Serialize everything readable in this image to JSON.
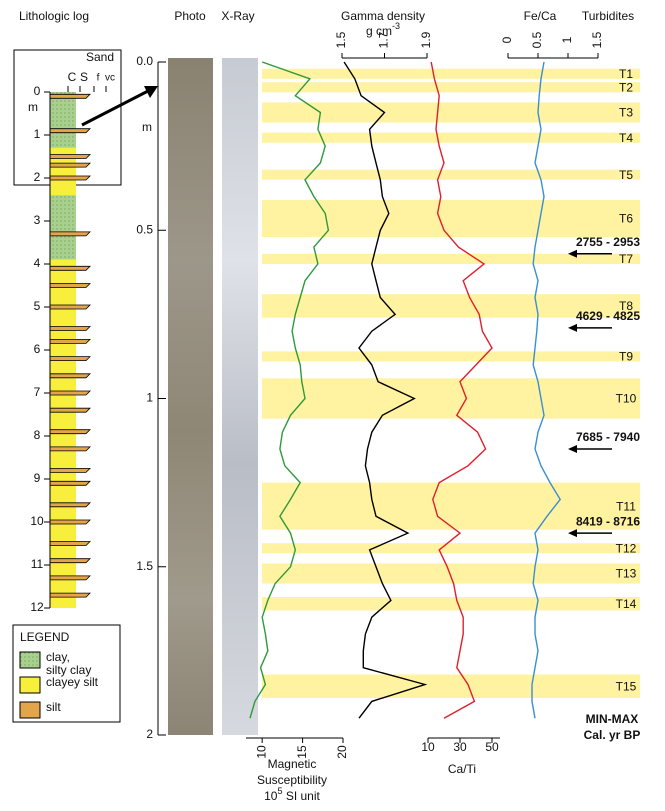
{
  "chart_data": [
    {
      "type": "log",
      "title": "Lithologic log",
      "ylim": [
        0,
        12
      ],
      "yticks": [
        0,
        1,
        2,
        3,
        4,
        5,
        6,
        7,
        8,
        9,
        10,
        11,
        12
      ],
      "ylabel": "m",
      "grain_title": "Sand",
      "grain_labels": [
        "C",
        "S",
        "f",
        "vc"
      ],
      "layers": [
        {
          "top": 0,
          "bottom": 1.3,
          "kind": 0
        },
        {
          "top": 1.3,
          "bottom": 2.4,
          "kind": 1
        },
        {
          "top": 2.4,
          "bottom": 3.9,
          "kind": 0
        },
        {
          "top": 3.9,
          "bottom": 12,
          "kind": 1
        }
      ],
      "silt_beds": [
        0.1,
        0.9,
        1.5,
        1.7,
        2.0,
        3.3,
        4.1,
        4.5,
        5.0,
        5.5,
        5.8,
        6.2,
        6.6,
        7.0,
        7.4,
        7.9,
        8.3,
        8.8,
        9.1,
        9.6,
        10.0,
        10.5,
        10.9,
        11.3,
        11.7
      ],
      "legend": {
        "title": "LEGEND",
        "items": [
          {
            "name": [
              "clay,",
              "silty clay"
            ],
            "color": "#a9d18e"
          },
          {
            "name": [
              "clayey silt"
            ],
            "color": "#f7ef3c"
          },
          {
            "name": [
              "silt"
            ],
            "color": "#e2a54a"
          }
        ]
      }
    },
    {
      "type": "profile",
      "column_titles": [
        "Photo",
        "X-Ray"
      ],
      "ylim": [
        0,
        2
      ],
      "yticks": [
        {
          "value": 0,
          "label": "0.0"
        },
        0.5,
        1,
        1.5,
        2
      ],
      "ylabel": "m",
      "depth": [
        0,
        0.05,
        0.1,
        0.15,
        0.2,
        0.25,
        0.3,
        0.35,
        0.4,
        0.45,
        0.5,
        0.55,
        0.6,
        0.65,
        0.7,
        0.75,
        0.8,
        0.85,
        0.9,
        0.95,
        1.0,
        1.05,
        1.1,
        1.15,
        1.2,
        1.25,
        1.3,
        1.35,
        1.4,
        1.45,
        1.5,
        1.55,
        1.6,
        1.65,
        1.7,
        1.75,
        1.8,
        1.85,
        1.9,
        1.95
      ],
      "panels": [
        {
          "name": [
            "Gamma density"
          ],
          "unit": [
            "g cm",
            "-3"
          ],
          "color": "#000000",
          "axis": "top",
          "xlim": [
            1.5,
            1.9
          ],
          "xticks": [
            1.5,
            1.7,
            1.9
          ],
          "values": [
            1.51,
            1.56,
            1.59,
            1.7,
            1.63,
            1.64,
            1.66,
            1.68,
            1.69,
            1.72,
            1.68,
            1.66,
            1.64,
            1.66,
            1.68,
            1.75,
            1.64,
            1.58,
            1.64,
            1.67,
            1.84,
            1.69,
            1.64,
            1.62,
            1.61,
            1.63,
            1.64,
            1.66,
            1.81,
            1.63,
            1.66,
            1.69,
            1.73,
            1.64,
            1.61,
            1.6,
            1.6,
            1.89,
            1.64,
            1.58
          ]
        },
        {
          "name": [
            "Magnetic",
            "Susceptibility"
          ],
          "unit": [
            "10",
            "5",
            " SI unit"
          ],
          "color": "#2e9a3a",
          "axis": "bottom",
          "xlim": [
            8,
            20
          ],
          "xticks": [
            10,
            15,
            20
          ],
          "values": [
            10,
            15.9,
            14.1,
            17.2,
            16.9,
            17.8,
            17.2,
            15.3,
            16.4,
            17.8,
            18.2,
            16.4,
            16.9,
            15.3,
            14.7,
            14.1,
            13.7,
            14.1,
            14.7,
            14.9,
            15.3,
            13.5,
            12.5,
            12.2,
            12.8,
            14.7,
            13.5,
            12.2,
            13.5,
            14.1,
            13.5,
            11.6,
            10.7,
            10,
            10.4,
            10.7,
            9.8,
            10.4,
            9.1,
            8.5
          ]
        },
        {
          "name": [
            "Ca/Ti"
          ],
          "color": "#e0202a",
          "axis": "bottom",
          "xlim": [
            10,
            55
          ],
          "xticks": [
            10,
            30,
            50
          ],
          "values": [
            12,
            14,
            17,
            16,
            15,
            17,
            20,
            16,
            18,
            16,
            20,
            29,
            45,
            32,
            36,
            42,
            44,
            50,
            40,
            30,
            34,
            28,
            41,
            46,
            35,
            17,
            13,
            16,
            30,
            17,
            22,
            26,
            28,
            32,
            32,
            30,
            28,
            35,
            39,
            20
          ]
        },
        {
          "name": [
            "Fe/Ca"
          ],
          "color": "#3a8fd0",
          "axis": "top",
          "xlim": [
            0,
            1.5
          ],
          "xticks": [
            0,
            0.5,
            1,
            1.5
          ],
          "values": [
            0.6,
            0.55,
            0.52,
            0.5,
            0.55,
            0.5,
            0.45,
            0.55,
            0.6,
            0.55,
            0.5,
            0.45,
            0.42,
            0.5,
            0.45,
            0.5,
            0.48,
            0.45,
            0.42,
            0.5,
            0.55,
            0.6,
            0.5,
            0.45,
            0.55,
            0.7,
            0.87,
            0.65,
            0.45,
            0.5,
            0.45,
            0.42,
            0.5,
            0.45,
            0.45,
            0.5,
            0.45,
            0.4,
            0.4,
            0.45
          ]
        }
      ],
      "turbidites_title": "Turbidites",
      "turbidites": [
        {
          "label": "T1",
          "top": 0.02,
          "bottom": 0.05
        },
        {
          "label": "T2",
          "top": 0.06,
          "bottom": 0.09
        },
        {
          "label": "T3",
          "top": 0.12,
          "bottom": 0.18
        },
        {
          "label": "T4",
          "top": 0.21,
          "bottom": 0.24
        },
        {
          "label": "T5",
          "top": 0.32,
          "bottom": 0.35
        },
        {
          "label": "T6",
          "top": 0.41,
          "bottom": 0.52
        },
        {
          "label": "T7",
          "top": 0.57,
          "bottom": 0.6
        },
        {
          "label": "T8",
          "top": 0.69,
          "bottom": 0.76
        },
        {
          "label": "T9",
          "top": 0.86,
          "bottom": 0.89
        },
        {
          "label": "T10",
          "top": 0.94,
          "bottom": 1.06
        },
        {
          "label": "T11",
          "top": 1.25,
          "bottom": 1.39
        },
        {
          "label": "T12",
          "top": 1.43,
          "bottom": 1.46
        },
        {
          "label": "T13",
          "top": 1.49,
          "bottom": 1.55
        },
        {
          "label": "T14",
          "top": 1.59,
          "bottom": 1.63
        },
        {
          "label": "T15",
          "top": 1.82,
          "bottom": 1.89
        }
      ],
      "ages": {
        "title": [
          "MIN-MAX",
          "Cal. yr BP"
        ],
        "items": [
          {
            "label": "2755 - 2953",
            "depth": 0.57
          },
          {
            "label": "4629 - 4825",
            "depth": 0.79
          },
          {
            "label": "7685 - 7940",
            "depth": 1.15
          },
          {
            "label": "8419 - 8716",
            "depth": 1.4
          }
        ]
      }
    }
  ]
}
